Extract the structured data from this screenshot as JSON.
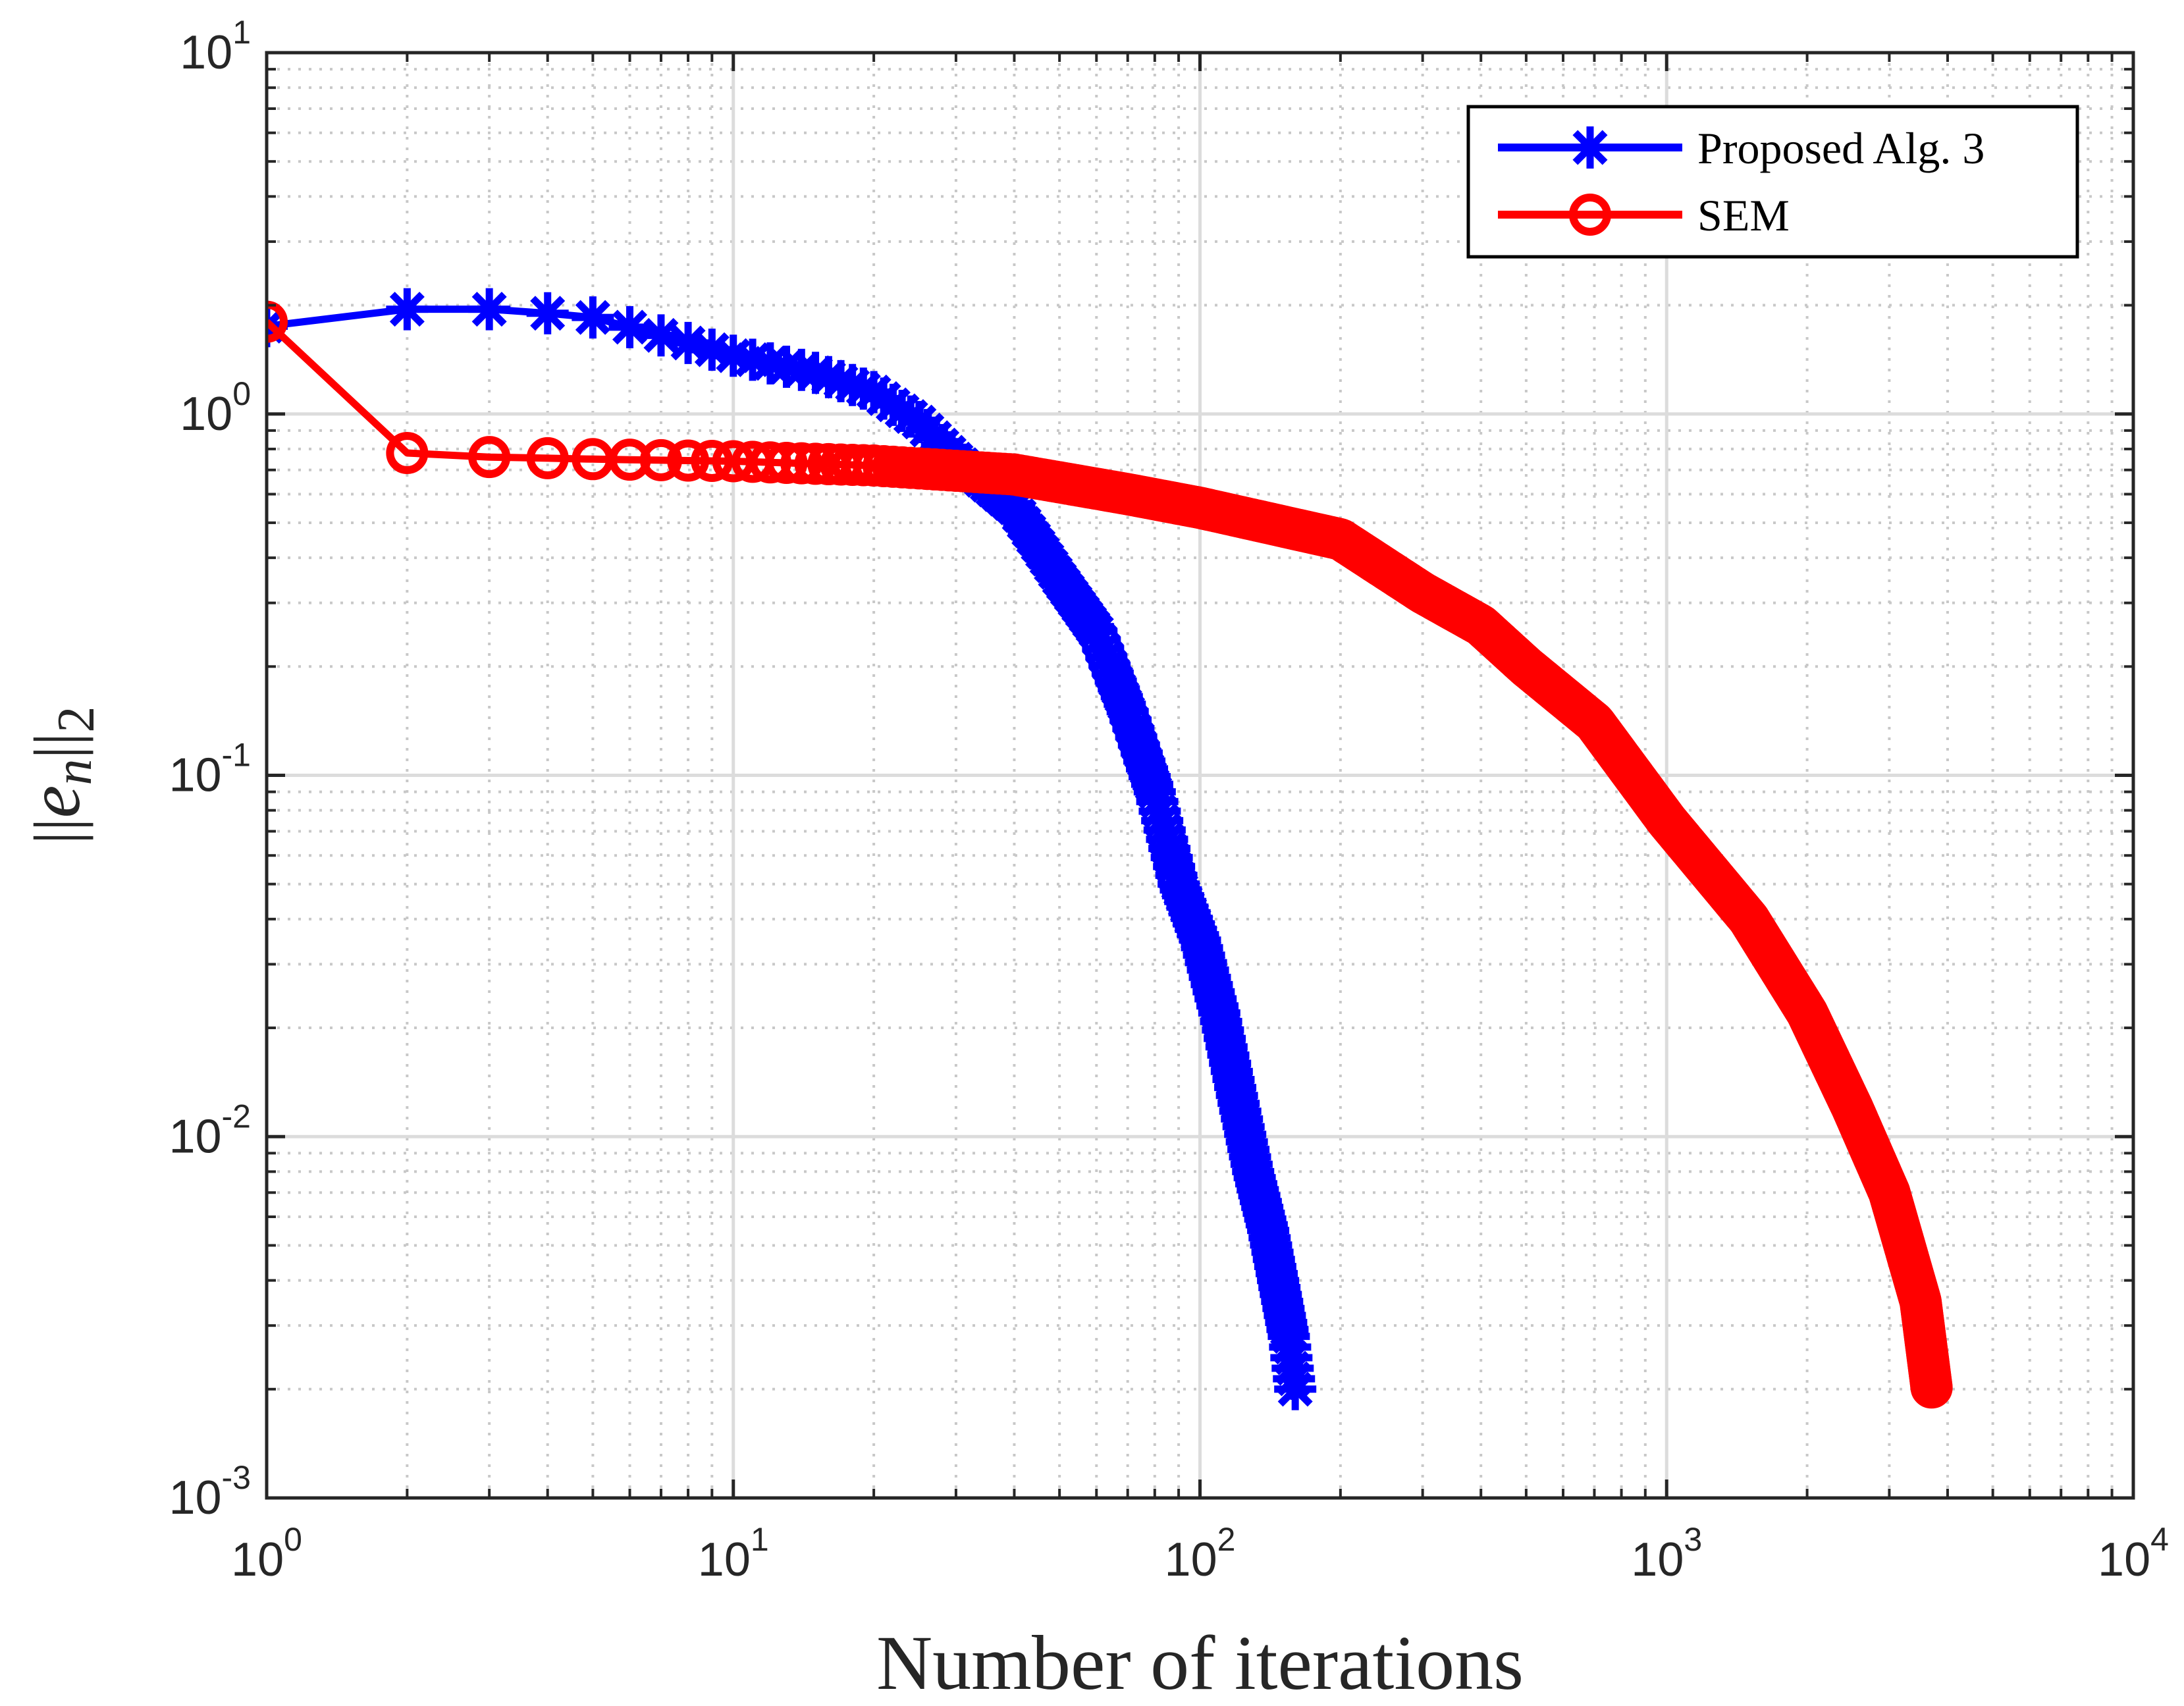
{
  "chart_data": {
    "type": "line",
    "title": "",
    "xlabel": "Number of iterations",
    "ylabel": "||e_n||_2",
    "ylabel_parts": {
      "bars_left": "||",
      "var": "e",
      "sub_var": "n",
      "bars_right": "||",
      "sub_norm": "2"
    },
    "xscale": "log",
    "yscale": "log",
    "xlim": [
      1,
      10000
    ],
    "ylim": [
      0.001,
      10
    ],
    "grid": true,
    "minor_grid": true,
    "legend_location": "top-right",
    "x_ticks": [
      {
        "value": 1,
        "base": "10",
        "exp": "0"
      },
      {
        "value": 10,
        "base": "10",
        "exp": "1"
      },
      {
        "value": 100,
        "base": "10",
        "exp": "2"
      },
      {
        "value": 1000,
        "base": "10",
        "exp": "3"
      },
      {
        "value": 10000,
        "base": "10",
        "exp": "4"
      }
    ],
    "y_ticks": [
      {
        "value": 0.001,
        "base": "10",
        "exp": "-3"
      },
      {
        "value": 0.01,
        "base": "10",
        "exp": "-2"
      },
      {
        "value": 0.1,
        "base": "10",
        "exp": "-1"
      },
      {
        "value": 1,
        "base": "10",
        "exp": "0"
      },
      {
        "value": 10,
        "base": "10",
        "exp": "1"
      }
    ],
    "series": [
      {
        "name": "Proposed Alg. 3",
        "color": "#0000ff",
        "marker": "asterisk",
        "n_points": 160,
        "anchors": [
          [
            1,
            1.75
          ],
          [
            2,
            1.95
          ],
          [
            3,
            1.95
          ],
          [
            4,
            1.9
          ],
          [
            5,
            1.85
          ],
          [
            7,
            1.65
          ],
          [
            10,
            1.45
          ],
          [
            15,
            1.3
          ],
          [
            20,
            1.15
          ],
          [
            25,
            0.95
          ],
          [
            30,
            0.75
          ],
          [
            40,
            0.55
          ],
          [
            50,
            0.35
          ],
          [
            60,
            0.25
          ],
          [
            70,
            0.15
          ],
          [
            80,
            0.09
          ],
          [
            90,
            0.05
          ],
          [
            100,
            0.035
          ],
          [
            110,
            0.022
          ],
          [
            120,
            0.013
          ],
          [
            130,
            0.008
          ],
          [
            140,
            0.0055
          ],
          [
            150,
            0.0035
          ],
          [
            155,
            0.0028
          ],
          [
            160,
            0.002
          ]
        ]
      },
      {
        "name": "SEM",
        "color": "#ff0000",
        "marker": "circle",
        "n_points": 3700,
        "anchors": [
          [
            1,
            1.8
          ],
          [
            2,
            0.78
          ],
          [
            3,
            0.76
          ],
          [
            5,
            0.75
          ],
          [
            10,
            0.74
          ],
          [
            20,
            0.72
          ],
          [
            40,
            0.68
          ],
          [
            70,
            0.6
          ],
          [
            100,
            0.55
          ],
          [
            200,
            0.45
          ],
          [
            300,
            0.32
          ],
          [
            400,
            0.26
          ],
          [
            500,
            0.2
          ],
          [
            700,
            0.14
          ],
          [
            1000,
            0.075
          ],
          [
            1500,
            0.04
          ],
          [
            2000,
            0.022
          ],
          [
            2500,
            0.012
          ],
          [
            3000,
            0.007
          ],
          [
            3500,
            0.0035
          ],
          [
            3700,
            0.002
          ]
        ]
      }
    ]
  }
}
